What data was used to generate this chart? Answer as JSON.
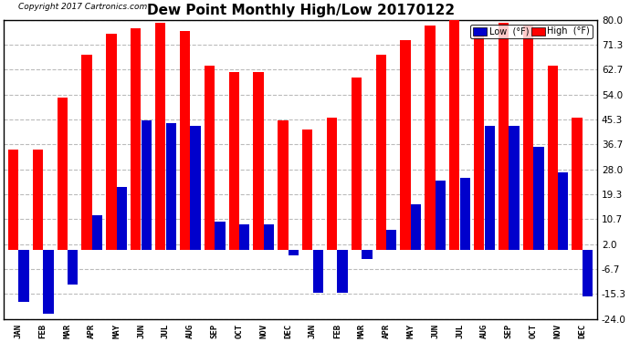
{
  "title": "Dew Point Monthly High/Low 20170122",
  "copyright": "Copyright 2017 Cartronics.com",
  "background_color": "#ffffff",
  "plot_bg_color": "#ffffff",
  "grid_color": "#bbbbbb",
  "months": [
    "JAN",
    "FEB",
    "MAR",
    "APR",
    "MAY",
    "JUN",
    "JUL",
    "AUG",
    "SEP",
    "OCT",
    "NOV",
    "DEC",
    "JAN",
    "FEB",
    "MAR",
    "APR",
    "MAY",
    "JUN",
    "JUL",
    "AUG",
    "SEP",
    "OCT",
    "NOV",
    "DEC"
  ],
  "high_values": [
    35.0,
    35.0,
    53.0,
    68.0,
    75.0,
    77.0,
    79.0,
    76.0,
    64.0,
    62.0,
    62.0,
    45.0,
    42.0,
    46.0,
    60.0,
    68.0,
    73.0,
    78.0,
    82.0,
    75.0,
    79.0,
    78.0,
    64.0,
    46.0
  ],
  "low_values": [
    -18.0,
    -22.0,
    -12.0,
    12.0,
    22.0,
    45.0,
    44.0,
    43.0,
    10.0,
    9.0,
    9.0,
    -2.0,
    -15.0,
    -15.0,
    -3.0,
    7.0,
    16.0,
    24.0,
    25.0,
    43.0,
    43.0,
    36.0,
    27.0,
    -16.0
  ],
  "high_color": "#ff0000",
  "low_color": "#0000cc",
  "yticks": [
    -24.0,
    -15.3,
    -6.7,
    2.0,
    10.7,
    19.3,
    28.0,
    36.7,
    45.3,
    54.0,
    62.7,
    71.3,
    80.0
  ],
  "legend_low_label": "Low  (°F)",
  "legend_high_label": "High  (°F)",
  "figwidth": 6.9,
  "figheight": 3.75,
  "dpi": 100
}
